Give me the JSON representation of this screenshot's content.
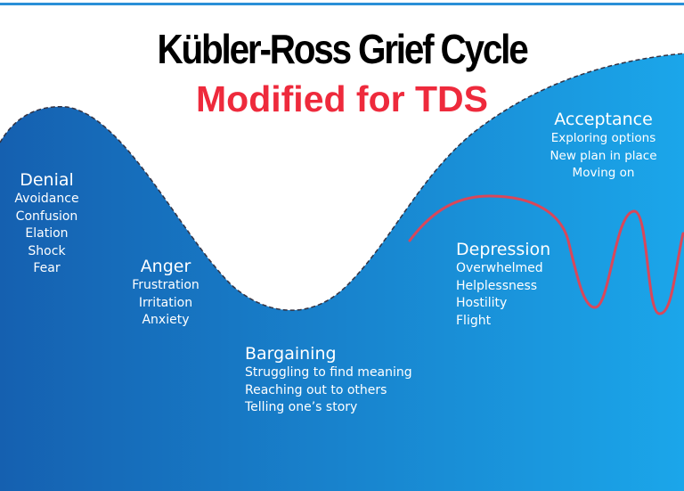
{
  "title": "Kübler-Ross Grief Cycle",
  "subtitle": "Modified for TDS",
  "colors": {
    "curve_dark": "#1560b0",
    "curve_light": "#1ba6ea",
    "annotation_red": "#d9475a",
    "subtitle": "#ee2a3c"
  },
  "stages": [
    {
      "name": "Denial",
      "items": [
        "Avoidance",
        "Confusion",
        "Elation",
        "Shock",
        "Fear"
      ]
    },
    {
      "name": "Anger",
      "items": [
        "Frustration",
        "Irritation",
        "Anxiety"
      ]
    },
    {
      "name": "Bargaining",
      "items": [
        "Struggling to find meaning",
        "Reaching out to others",
        "Telling one’s story"
      ]
    },
    {
      "name": "Depression",
      "items": [
        "Overwhelmed",
        "Helplessness",
        "Hostility",
        "Flight"
      ]
    },
    {
      "name": "Acceptance",
      "items": [
        "Exploring options",
        "New plan in place",
        "Moving on"
      ]
    }
  ]
}
